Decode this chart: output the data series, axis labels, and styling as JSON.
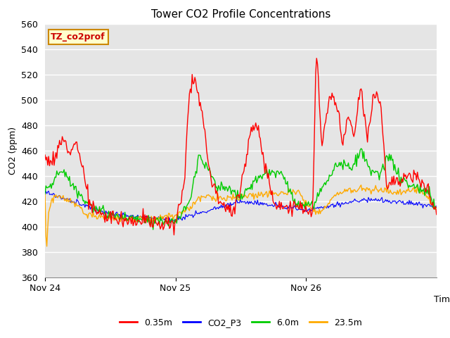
{
  "title": "Tower CO2 Profile Concentrations",
  "ylabel": "CO2 (ppm)",
  "xlabel": "Time",
  "annotation": "TZ_co2prof",
  "ylim": [
    360,
    560
  ],
  "yticks": [
    360,
    380,
    400,
    420,
    440,
    460,
    480,
    500,
    520,
    540,
    560
  ],
  "xtick_positions": [
    0,
    1,
    2
  ],
  "xtick_labels": [
    "Nov 24",
    "Nov 25",
    "Nov 26"
  ],
  "colors": {
    "0.35m": "#ff0000",
    "CO2_P3": "#0000ff",
    "6.0m": "#00cc00",
    "23.5m": "#ffaa00"
  },
  "bg_color": "#e5e5e5",
  "legend_labels": [
    "0.35m",
    "CO2_P3",
    "6.0m",
    "23.5m"
  ],
  "red_keypoints": {
    "t": [
      0,
      0.07,
      0.12,
      0.17,
      0.21,
      0.24,
      0.27,
      0.35,
      0.45,
      0.55,
      0.65,
      0.75,
      0.85,
      1.0,
      1.07,
      1.1,
      1.13,
      1.17,
      1.22,
      1.27,
      1.35,
      1.45,
      1.55,
      1.58,
      1.62,
      1.67,
      1.75,
      1.85,
      1.95,
      2.0,
      2.05,
      2.08,
      2.12,
      2.18,
      2.23,
      2.28,
      2.32,
      2.37,
      2.42,
      2.47,
      2.52,
      2.57,
      2.62,
      2.67,
      2.72,
      2.78,
      2.85,
      2.92,
      3.0
    ],
    "v": [
      455,
      450,
      468,
      465,
      462,
      468,
      455,
      415,
      408,
      407,
      405,
      405,
      403,
      401,
      438,
      497,
      520,
      508,
      480,
      437,
      420,
      410,
      458,
      480,
      478,
      458,
      420,
      415,
      415,
      415,
      408,
      543,
      460,
      503,
      499,
      464,
      487,
      470,
      510,
      468,
      505,
      500,
      432,
      437,
      435,
      440,
      437,
      433,
      410
    ]
  },
  "green_keypoints": {
    "t": [
      0,
      0.05,
      0.1,
      0.15,
      0.2,
      0.3,
      0.45,
      0.6,
      0.75,
      0.88,
      1.0,
      1.08,
      1.12,
      1.18,
      1.25,
      1.32,
      1.42,
      1.52,
      1.62,
      1.72,
      1.82,
      1.92,
      2.0,
      2.07,
      2.12,
      2.18,
      2.22,
      2.28,
      2.35,
      2.42,
      2.5,
      2.57,
      2.62,
      2.67,
      2.72,
      2.8,
      2.88,
      2.95,
      3.0
    ],
    "v": [
      428,
      433,
      442,
      443,
      435,
      420,
      410,
      407,
      405,
      405,
      403,
      415,
      425,
      458,
      445,
      432,
      428,
      423,
      438,
      442,
      442,
      418,
      415,
      418,
      430,
      440,
      448,
      450,
      445,
      460,
      442,
      440,
      455,
      450,
      437,
      432,
      430,
      425,
      413
    ]
  },
  "orange_keypoints": {
    "t": [
      0,
      0.01,
      0.03,
      0.07,
      0.12,
      0.2,
      0.32,
      0.45,
      0.6,
      0.75,
      0.88,
      1.0,
      1.1,
      1.2,
      1.3,
      1.42,
      1.55,
      1.68,
      1.82,
      1.95,
      2.0,
      2.08,
      2.15,
      2.22,
      2.32,
      2.42,
      2.52,
      2.62,
      2.72,
      2.82,
      2.92,
      3.0
    ],
    "v": [
      425,
      378,
      415,
      424,
      422,
      420,
      410,
      407,
      406,
      406,
      407,
      408,
      415,
      424,
      422,
      422,
      424,
      425,
      427,
      427,
      418,
      412,
      415,
      425,
      428,
      430,
      430,
      428,
      427,
      430,
      425,
      412
    ]
  }
}
